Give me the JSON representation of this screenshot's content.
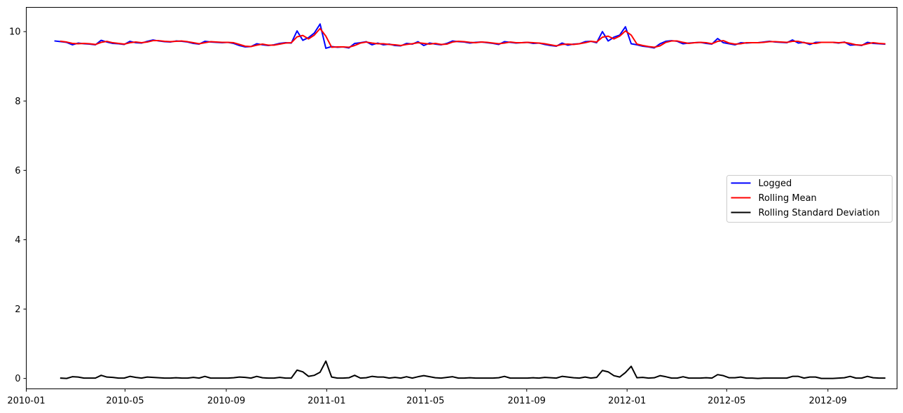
{
  "chart_data": {
    "type": "line",
    "title": "",
    "xlabel": "",
    "ylabel": "",
    "grid": false,
    "legend_position": "center-right",
    "xlim": [
      "2010-01-01",
      "2012-11-24"
    ],
    "ylim": [
      -0.3,
      10.7
    ],
    "x_ticks": [
      {
        "date": "2010-01-01",
        "label": "2010-01"
      },
      {
        "date": "2010-05-01",
        "label": "2010-05"
      },
      {
        "date": "2010-09-01",
        "label": "2010-09"
      },
      {
        "date": "2011-01-01",
        "label": "2011-01"
      },
      {
        "date": "2011-05-01",
        "label": "2011-05"
      },
      {
        "date": "2011-09-01",
        "label": "2011-09"
      },
      {
        "date": "2012-01-01",
        "label": "2012-01"
      },
      {
        "date": "2012-05-01",
        "label": "2012-05"
      },
      {
        "date": "2012-09-01",
        "label": "2012-09"
      }
    ],
    "y_ticks": [
      {
        "value": 0,
        "label": "0"
      },
      {
        "value": 2,
        "label": "2"
      },
      {
        "value": 4,
        "label": "4"
      },
      {
        "value": 6,
        "label": "6"
      },
      {
        "value": 8,
        "label": "8"
      },
      {
        "value": 10,
        "label": "10"
      }
    ],
    "x_frequency": "weekly",
    "x_start": "2010-02-05",
    "series": [
      {
        "name": "Logged",
        "color": "#0000ff",
        "values": [
          9.73,
          9.71,
          9.69,
          9.62,
          9.67,
          9.65,
          9.64,
          9.62,
          9.75,
          9.7,
          9.66,
          9.65,
          9.63,
          9.72,
          9.68,
          9.67,
          9.72,
          9.76,
          9.73,
          9.71,
          9.7,
          9.73,
          9.72,
          9.7,
          9.66,
          9.64,
          9.72,
          9.7,
          9.69,
          9.68,
          9.69,
          9.66,
          9.6,
          9.56,
          9.57,
          9.65,
          9.62,
          9.6,
          9.62,
          9.66,
          9.68,
          9.67,
          10.02,
          9.75,
          9.83,
          9.96,
          10.22,
          9.52,
          9.57,
          9.55,
          9.56,
          9.53,
          9.66,
          9.68,
          9.71,
          9.62,
          9.67,
          9.62,
          9.64,
          9.6,
          9.59,
          9.66,
          9.64,
          9.71,
          9.6,
          9.67,
          9.64,
          9.62,
          9.66,
          9.73,
          9.71,
          9.7,
          9.67,
          9.69,
          9.7,
          9.68,
          9.66,
          9.63,
          9.71,
          9.69,
          9.67,
          9.68,
          9.69,
          9.66,
          9.67,
          9.63,
          9.6,
          9.58,
          9.67,
          9.61,
          9.64,
          9.65,
          9.71,
          9.72,
          9.68,
          10.0,
          9.73,
          9.84,
          9.9,
          10.14,
          9.65,
          9.62,
          9.58,
          9.56,
          9.53,
          9.65,
          9.72,
          9.74,
          9.72,
          9.65,
          9.67,
          9.68,
          9.69,
          9.66,
          9.64,
          9.8,
          9.68,
          9.65,
          9.62,
          9.68,
          9.67,
          9.68,
          9.68,
          9.7,
          9.72,
          9.7,
          9.69,
          9.68,
          9.76,
          9.67,
          9.69,
          9.63,
          9.69,
          9.69,
          9.69,
          9.69,
          9.67,
          9.7,
          9.61,
          9.62,
          9.6,
          9.69,
          9.66,
          9.65,
          9.64
        ],
        "line_width": 2
      },
      {
        "name": "Rolling Mean",
        "color": "#ff0000",
        "values": [
          null,
          9.72,
          9.7,
          9.66,
          9.65,
          9.66,
          9.65,
          9.63,
          9.69,
          9.72,
          9.68,
          9.66,
          9.64,
          9.68,
          9.7,
          9.68,
          9.7,
          9.74,
          9.74,
          9.72,
          9.71,
          9.72,
          9.73,
          9.71,
          9.68,
          9.65,
          9.68,
          9.71,
          9.7,
          9.69,
          9.69,
          9.68,
          9.63,
          9.58,
          9.57,
          9.61,
          9.64,
          9.61,
          9.61,
          9.64,
          9.67,
          9.68,
          9.85,
          9.89,
          9.79,
          9.9,
          10.09,
          9.87,
          9.55,
          9.56,
          9.56,
          9.55,
          9.6,
          9.67,
          9.7,
          9.67,
          9.65,
          9.65,
          9.63,
          9.62,
          9.6,
          9.63,
          9.65,
          9.68,
          9.66,
          9.64,
          9.66,
          9.63,
          9.64,
          9.7,
          9.72,
          9.71,
          9.69,
          9.68,
          9.7,
          9.69,
          9.67,
          9.65,
          9.67,
          9.7,
          9.68,
          9.68,
          9.69,
          9.68,
          9.67,
          9.65,
          9.62,
          9.59,
          9.63,
          9.64,
          9.63,
          9.65,
          9.68,
          9.72,
          9.7,
          9.84,
          9.87,
          9.79,
          9.87,
          10.02,
          9.9,
          9.64,
          9.6,
          9.57,
          9.55,
          9.59,
          9.69,
          9.73,
          9.73,
          9.69,
          9.66,
          9.68,
          9.69,
          9.68,
          9.65,
          9.72,
          9.74,
          9.67,
          9.64,
          9.65,
          9.68,
          9.68,
          9.68,
          9.69,
          9.71,
          9.71,
          9.7,
          9.69,
          9.72,
          9.72,
          9.68,
          9.66,
          9.66,
          9.69,
          9.69,
          9.69,
          9.68,
          9.69,
          9.66,
          9.62,
          9.61,
          9.65,
          9.68,
          9.66,
          9.65
        ],
        "line_width": 2
      },
      {
        "name": "Rolling Standard Deviation",
        "color": "#000000",
        "values": [
          null,
          0.01,
          0.0,
          0.05,
          0.04,
          0.01,
          0.01,
          0.01,
          0.09,
          0.04,
          0.03,
          0.01,
          0.01,
          0.06,
          0.03,
          0.01,
          0.04,
          0.03,
          0.02,
          0.01,
          0.01,
          0.02,
          0.01,
          0.01,
          0.03,
          0.01,
          0.06,
          0.01,
          0.01,
          0.01,
          0.01,
          0.02,
          0.04,
          0.03,
          0.01,
          0.06,
          0.02,
          0.01,
          0.01,
          0.03,
          0.01,
          0.01,
          0.24,
          0.19,
          0.06,
          0.09,
          0.18,
          0.5,
          0.04,
          0.01,
          0.01,
          0.02,
          0.09,
          0.01,
          0.02,
          0.06,
          0.04,
          0.04,
          0.01,
          0.03,
          0.01,
          0.05,
          0.01,
          0.05,
          0.08,
          0.05,
          0.02,
          0.01,
          0.03,
          0.05,
          0.01,
          0.01,
          0.02,
          0.01,
          0.01,
          0.01,
          0.01,
          0.02,
          0.06,
          0.01,
          0.01,
          0.01,
          0.01,
          0.02,
          0.01,
          0.03,
          0.02,
          0.01,
          0.06,
          0.04,
          0.02,
          0.01,
          0.04,
          0.01,
          0.03,
          0.23,
          0.19,
          0.08,
          0.04,
          0.17,
          0.35,
          0.02,
          0.03,
          0.01,
          0.02,
          0.08,
          0.05,
          0.01,
          0.01,
          0.05,
          0.01,
          0.01,
          0.01,
          0.02,
          0.01,
          0.11,
          0.08,
          0.02,
          0.02,
          0.04,
          0.01,
          0.01,
          0.0,
          0.01,
          0.01,
          0.01,
          0.01,
          0.01,
          0.06,
          0.06,
          0.01,
          0.04,
          0.04,
          0.0,
          0.0,
          0.0,
          0.01,
          0.02,
          0.06,
          0.01,
          0.01,
          0.06,
          0.02,
          0.01,
          0.01
        ],
        "line_width": 2
      }
    ]
  }
}
